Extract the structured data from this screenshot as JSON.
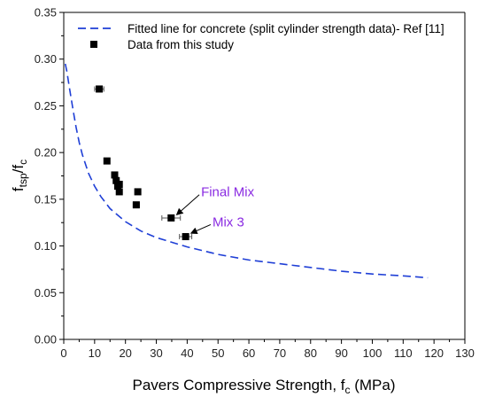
{
  "chart_data": {
    "type": "scatter",
    "xlabel_main": "Pavers Compressive Strength, f",
    "xlabel_sub": "c",
    "xlabel_unit": " (MPa)",
    "ylabel_main": "f",
    "ylabel_sub1": "tsp",
    "ylabel_slash": "/f",
    "ylabel_sub2": "c",
    "xlim": [
      0,
      130
    ],
    "ylim": [
      0.0,
      0.35
    ],
    "x_ticks": [
      "0",
      "10",
      "20",
      "30",
      "40",
      "50",
      "60",
      "70",
      "80",
      "90",
      "100",
      "110",
      "120",
      "130"
    ],
    "y_ticks": [
      "0.00",
      "0.05",
      "0.10",
      "0.15",
      "0.20",
      "0.25",
      "0.30",
      "0.35"
    ],
    "grid": false,
    "legend_position": "top-left",
    "series": [
      {
        "name": "Fitted line for concrete (split cylinder strength data)- Ref [11]",
        "kind": "dashed-line",
        "color": "#1f3fd6",
        "x": [
          0.5,
          1,
          2,
          3,
          4,
          5,
          6,
          8,
          10,
          12,
          15,
          20,
          25,
          30,
          35,
          40,
          50,
          60,
          70,
          80,
          90,
          100,
          110,
          118
        ],
        "y": [
          0.295,
          0.287,
          0.266,
          0.246,
          0.227,
          0.211,
          0.198,
          0.178,
          0.164,
          0.153,
          0.14,
          0.126,
          0.116,
          0.109,
          0.104,
          0.099,
          0.091,
          0.085,
          0.081,
          0.077,
          0.073,
          0.07,
          0.068,
          0.066
        ]
      },
      {
        "name": "Data from this study",
        "kind": "square-markers",
        "color": "#000000",
        "points": [
          {
            "x": 11.5,
            "y": 0.268,
            "xerr": 1.5
          },
          {
            "x": 14.0,
            "y": 0.191,
            "xerr": 0.5
          },
          {
            "x": 16.5,
            "y": 0.176,
            "xerr": 0.8
          },
          {
            "x": 17.0,
            "y": 0.17,
            "xerr": 0.8
          },
          {
            "x": 17.5,
            "y": 0.164,
            "xerr": 0.8
          },
          {
            "x": 18.0,
            "y": 0.166,
            "xerr": 0.7
          },
          {
            "x": 18.0,
            "y": 0.158,
            "xerr": 0.7
          },
          {
            "x": 24.0,
            "y": 0.158,
            "xerr": 0.6
          },
          {
            "x": 23.5,
            "y": 0.144,
            "xerr": 1.0
          },
          {
            "x": 34.8,
            "y": 0.13,
            "xerr": 3.0
          },
          {
            "x": 39.5,
            "y": 0.11,
            "xerr": 2.0
          }
        ]
      }
    ],
    "annotations": [
      {
        "text": "Final Mix",
        "x": 44.5,
        "y": 0.153,
        "arrow_to_x": 36.8,
        "arrow_to_y": 0.134
      },
      {
        "text": "Mix 3",
        "x": 48.2,
        "y": 0.121,
        "arrow_to_x": 41.5,
        "arrow_to_y": 0.114
      }
    ]
  }
}
